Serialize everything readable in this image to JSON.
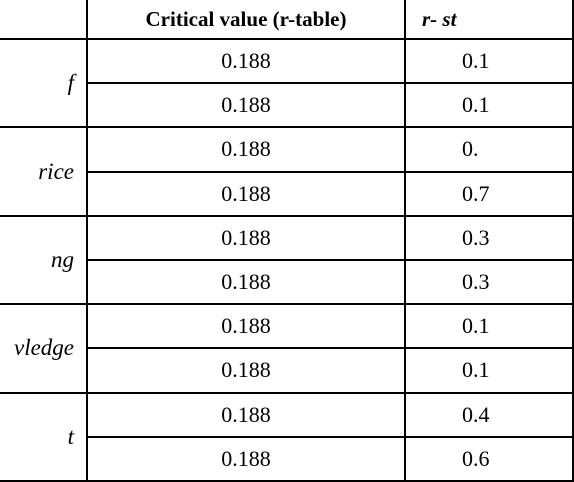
{
  "table": {
    "headers": [
      "",
      "Critical value (r-table)",
      "r- st"
    ],
    "rows": [
      {
        "var": "f",
        "critical": "0.188",
        "rstat": "0.1"
      },
      {
        "var": "",
        "critical": "0.188",
        "rstat": "0.1"
      },
      {
        "var": "rice",
        "critical": "0.188",
        "rstat": "0."
      },
      {
        "var": "",
        "critical": "0.188",
        "rstat": "0.7"
      },
      {
        "var": "ng",
        "critical": "0.188",
        "rstat": "0.3"
      },
      {
        "var": "",
        "critical": "0.188",
        "rstat": "0.3"
      },
      {
        "var": "vledge",
        "critical": "0.188",
        "rstat": "0.1"
      },
      {
        "var": "",
        "critical": "0.188",
        "rstat": "0.1"
      },
      {
        "var": "t",
        "critical": "0.188",
        "rstat": "0.4"
      },
      {
        "var": "",
        "critical": "0.188",
        "rstat": "0.6"
      }
    ]
  }
}
